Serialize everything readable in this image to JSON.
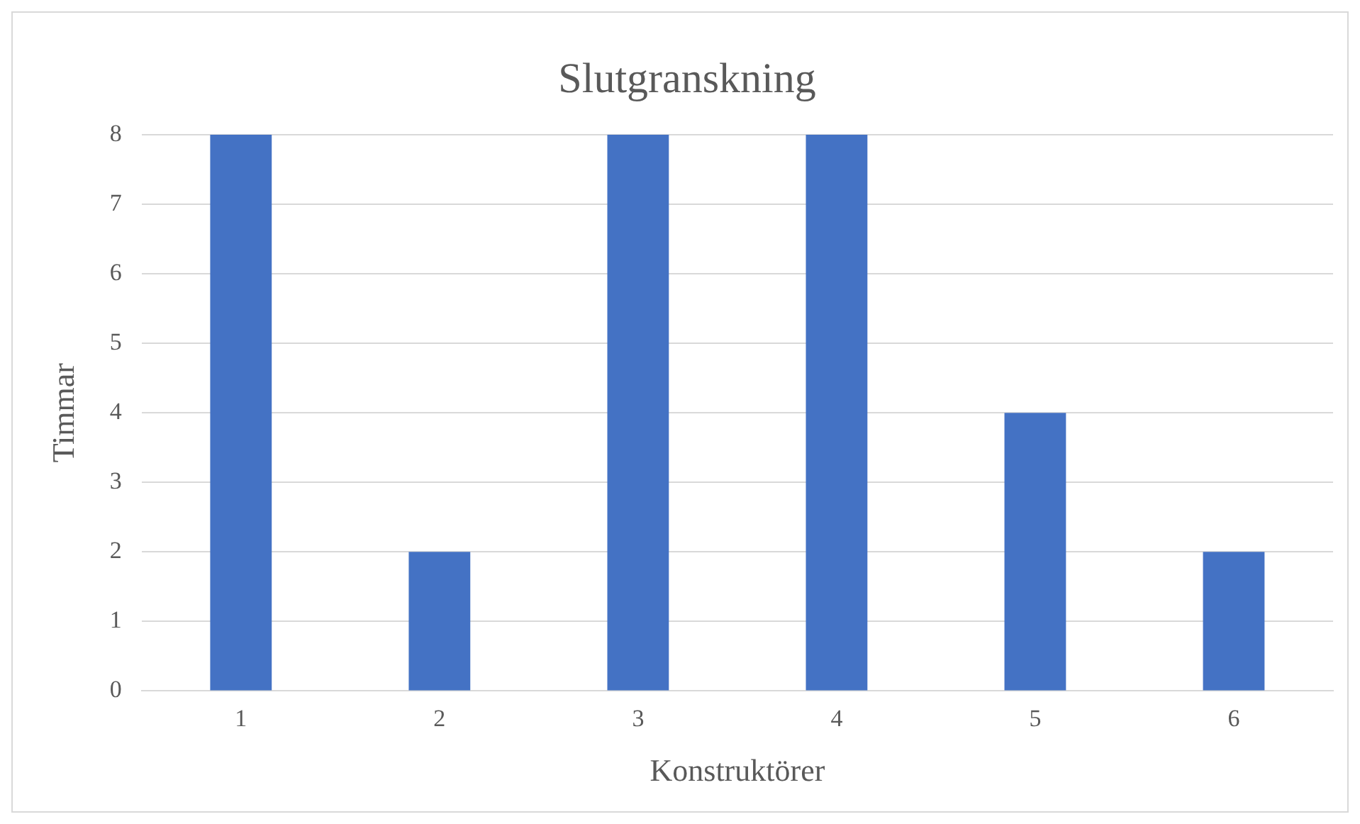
{
  "chart_data": {
    "type": "bar",
    "title": "Slutgranskning",
    "xlabel": "Konstruktörer",
    "ylabel": "Timmar",
    "categories": [
      "1",
      "2",
      "3",
      "4",
      "5",
      "6"
    ],
    "values": [
      8,
      2,
      8,
      8,
      4,
      2
    ],
    "color": "#4472c4",
    "ylim": [
      0,
      8
    ],
    "yticks": [
      0,
      1,
      2,
      3,
      4,
      5,
      6,
      7,
      8
    ],
    "grid": "y",
    "legend": false
  }
}
